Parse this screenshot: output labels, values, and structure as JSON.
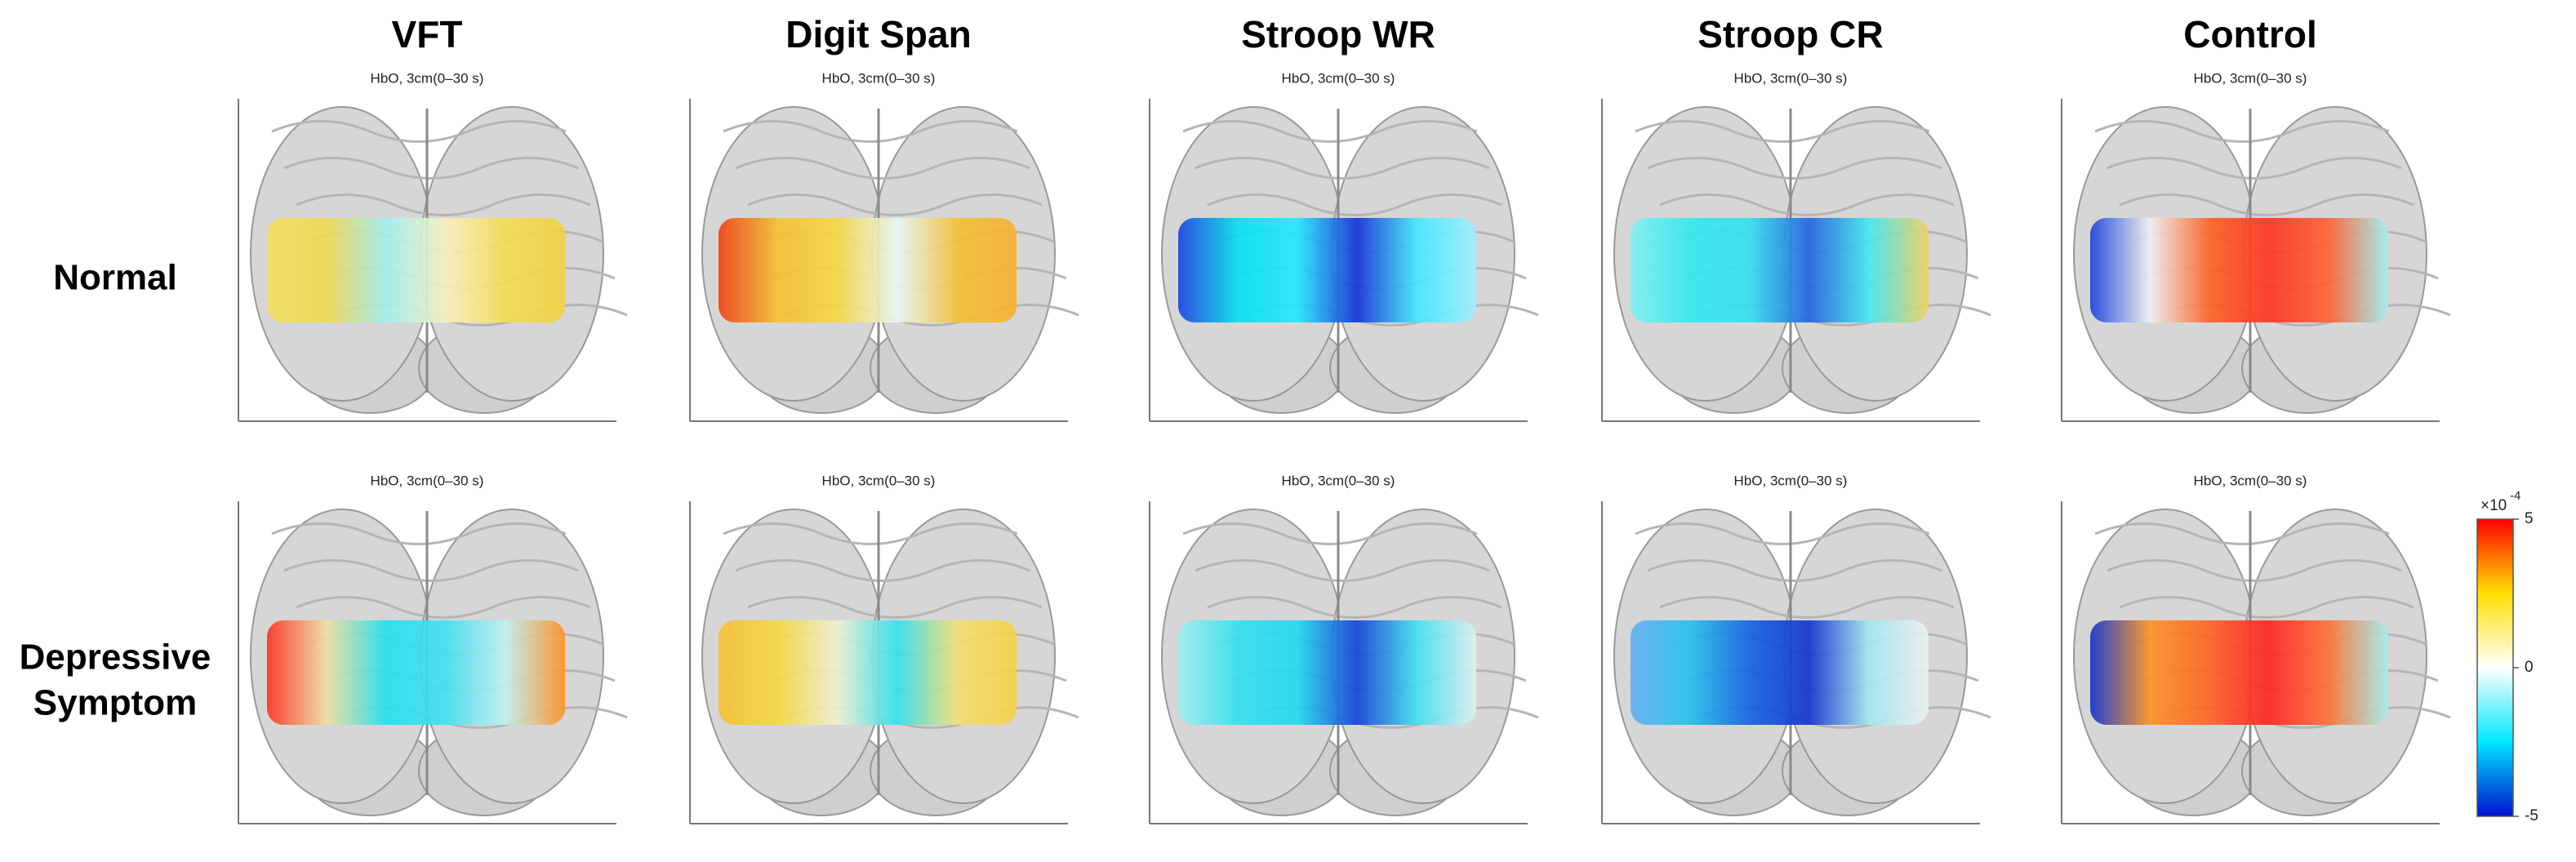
{
  "columns": [
    "VFT",
    "Digit Span",
    "Stroop WR",
    "Stroop CR",
    "Control"
  ],
  "rows": [
    {
      "lines": [
        "Normal"
      ]
    },
    {
      "lines": [
        "Depressive",
        "Symptom"
      ]
    }
  ],
  "panels": [
    [
      {
        "title": "HbO, 3cm(0–30 s)",
        "heat": [
          "#f5e060",
          "#f0d850",
          "#a0f0f0",
          "#f8f0c0",
          "#f5dc50",
          "#f0d040"
        ]
      },
      {
        "title": "HbO, 3cm(0–30 s)",
        "heat": [
          "#f04010",
          "#f5c030",
          "#f5d840",
          "#e8f8f8",
          "#f5c030",
          "#f5b030"
        ]
      },
      {
        "title": "HbO, 3cm(0–30 s)",
        "heat": [
          "#1840e0",
          "#00e0f0",
          "#20e8ff",
          "#1030d8",
          "#40e8ff",
          "#a0f0ff"
        ]
      },
      {
        "title": "HbO, 3cm(0–30 s)",
        "heat": [
          "#80f0f0",
          "#30e8f0",
          "#30e0f0",
          "#2060e0",
          "#40e8f0",
          "#f0d060"
        ]
      },
      {
        "title": "HbO, 3cm(0–30 s)",
        "heat": [
          "#1840e0",
          "#f0f0f0",
          "#ff6020",
          "#ff3020",
          "#ff6030",
          "#a0f0f0"
        ]
      }
    ],
    [
      {
        "title": "HbO, 3cm(0–30 s)",
        "heat": [
          "#ff3020",
          "#f0e0a0",
          "#20e0f0",
          "#40e0f0",
          "#c0f0f0",
          "#ff9020"
        ]
      },
      {
        "title": "HbO, 3cm(0–30 s)",
        "heat": [
          "#f5c030",
          "#f5d840",
          "#f0f0d0",
          "#30e0f0",
          "#f5e070",
          "#f5d040"
        ]
      },
      {
        "title": "HbO, 3cm(0–30 s)",
        "heat": [
          "#a0f0f0",
          "#30e0f0",
          "#20d8f0",
          "#1040d8",
          "#40e0f0",
          "#e0f0f0"
        ]
      },
      {
        "title": "HbO, 3cm(0–30 s)",
        "heat": [
          "#60b0f0",
          "#20c0f0",
          "#1060e0",
          "#1030d0",
          "#a0e8f0",
          "#f0f0f0"
        ]
      },
      {
        "title": "HbO, 3cm(0–30 s)",
        "heat": [
          "#1030d0",
          "#ff9020",
          "#ff6020",
          "#ff2020",
          "#ff7030",
          "#a0f0f0"
        ]
      }
    ]
  ],
  "colorbar": {
    "lim": [
      -5,
      5
    ],
    "ticks": [
      5,
      0,
      -5
    ],
    "multiplier": "×10",
    "exponent": "-4",
    "colormap": [
      "#0010d0",
      "#00e8ff",
      "#ffffff",
      "#ffe000",
      "#ff0000"
    ]
  }
}
